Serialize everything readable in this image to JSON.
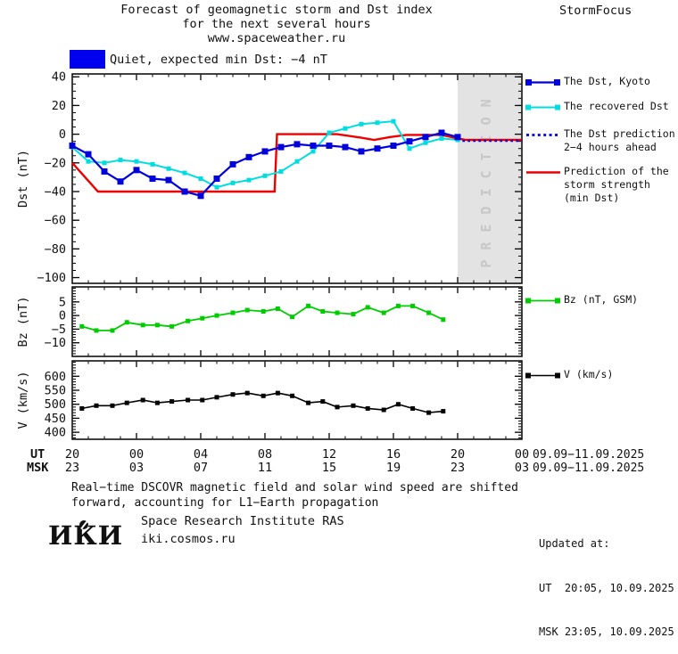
{
  "header": {
    "title_line1": "Forecast of geomagnetic storm and Dst index",
    "title_line2": "for the next several hours",
    "title_line3": "www.spaceweather.ru",
    "brand": "StormFocus"
  },
  "banner": {
    "label": "Quiet, expected min Dst: −4 nT",
    "box_color": "#0000ee"
  },
  "legend": {
    "kyoto": "The Dst, Kyoto",
    "recovered": "The recovered Dst",
    "prediction": "The Dst prediction\n2−4 hours ahead",
    "storm": "Prediction of the\nstorm strength\n(min Dst)",
    "bz": "Bz (nT, GSM)",
    "v": "V (km/s)"
  },
  "colors": {
    "dst_kyoto_blue": "#0000dd",
    "recovered_cyan": "#00dde0",
    "prediction_red": "#ee0000",
    "bz_green": "#00cc00",
    "v_black": "#000000",
    "prediction_bg": "#e3e3e3",
    "prediction_text": "#c7c7c7"
  },
  "x_axis": {
    "ut_label": "UT",
    "msk_label": "MSK",
    "ut_values": [
      "20",
      "00",
      "04",
      "08",
      "12",
      "16",
      "20",
      "00"
    ],
    "msk_values": [
      "23",
      "03",
      "07",
      "11",
      "15",
      "19",
      "23",
      "03"
    ],
    "date_range": "09.09−11.09.2025"
  },
  "chart_data": [
    {
      "type": "line",
      "ylabel": "Dst (nT)",
      "ylim": [
        -104,
        42
      ],
      "yticks": [
        40,
        20,
        0,
        -20,
        -40,
        -60,
        -80,
        -100
      ],
      "yminor": 5,
      "xlim": [
        20,
        48
      ],
      "prediction_region": {
        "from": 44,
        "to": 48,
        "label": "PREDICTION"
      },
      "draw_order": [
        3,
        1,
        0,
        2
      ],
      "series": [
        {
          "name": "The Dst, Kyoto",
          "color": "#0000dd",
          "width": 2.2,
          "marker": 7,
          "x": [
            20,
            21,
            22,
            23,
            24,
            25,
            26,
            27,
            28,
            29,
            30,
            31,
            32,
            33,
            34,
            35,
            36,
            37,
            38,
            39,
            40,
            41,
            42,
            43,
            44
          ],
          "y": [
            -8,
            -14,
            -26,
            -33,
            -25,
            -31,
            -32,
            -40,
            -43,
            -31,
            -21,
            -16,
            -12,
            -9,
            -7,
            -8,
            -8,
            -9,
            -12,
            -10,
            -8,
            -5,
            -2,
            1,
            -2
          ]
        },
        {
          "name": "The recovered Dst",
          "color": "#00dde0",
          "width": 2,
          "marker": 5,
          "x": [
            20,
            21,
            22,
            23,
            24,
            25,
            26,
            27,
            28,
            29,
            30,
            31,
            32,
            33,
            34,
            35,
            36,
            37,
            38,
            39,
            40,
            41,
            42,
            43,
            44
          ],
          "y": [
            -9,
            -19,
            -20,
            -18,
            -19,
            -21,
            -24,
            -27,
            -31,
            -37,
            -34,
            -32,
            -29,
            -26,
            -19,
            -12,
            1,
            4,
            7,
            8,
            9,
            -10,
            -6,
            -3,
            -4
          ]
        },
        {
          "name": "The Dst prediction 2-4 hours ahead",
          "color": "#0000dd",
          "width": 2.6,
          "style": "dotted",
          "x": [
            44.3,
            48
          ],
          "y": [
            -4.6,
            -4.6
          ]
        },
        {
          "name": "Prediction of the storm strength (min Dst)",
          "color": "#ee0000",
          "width": 2.4,
          "x": [
            20,
            21.6,
            32.6,
            32.75,
            36.5,
            38,
            38.8,
            39.8,
            40.8,
            43,
            43.8,
            44.5,
            48
          ],
          "y": [
            -20,
            -40,
            -40,
            0,
            0,
            -2.5,
            -4,
            -2,
            -0.5,
            -0.5,
            -2.5,
            -4,
            -4
          ]
        }
      ]
    },
    {
      "type": "line",
      "ylabel": "Bz (nT)",
      "ylim": [
        -15,
        10.5
      ],
      "yticks": [
        5,
        0,
        -5,
        -10
      ],
      "yminor": 1,
      "xlim": [
        20,
        48
      ],
      "series": [
        {
          "name": "Bz (nT, GSM)",
          "color": "#00cc00",
          "width": 1.8,
          "marker": 5,
          "x": [
            20.6,
            21.5,
            22.5,
            23.4,
            24.4,
            25.3,
            26.2,
            27.2,
            28.1,
            29,
            30,
            30.9,
            31.9,
            32.8,
            33.7,
            34.7,
            35.6,
            36.5,
            37.5,
            38.4,
            39.4,
            40.3,
            41.2,
            42.2,
            43.1
          ],
          "y": [
            -4,
            -5.5,
            -5.5,
            -2.5,
            -3.5,
            -3.5,
            -4,
            -2,
            -1,
            0,
            1,
            2,
            1.5,
            2.5,
            -0.5,
            3.5,
            1.5,
            1,
            0.5,
            3,
            1,
            3.5,
            3.5,
            1,
            -1.5
          ]
        }
      ]
    },
    {
      "type": "line",
      "ylabel": "V (km/s)",
      "ylim": [
        375,
        655
      ],
      "yticks": [
        600,
        550,
        500,
        450,
        400
      ],
      "yminor": 10,
      "xlim": [
        20,
        48
      ],
      "series": [
        {
          "name": "V (km/s)",
          "color": "#000000",
          "width": 1.6,
          "marker": 5,
          "x": [
            20.6,
            21.5,
            22.5,
            23.4,
            24.4,
            25.3,
            26.2,
            27.2,
            28.1,
            29,
            30,
            30.9,
            31.9,
            32.8,
            33.7,
            34.7,
            35.6,
            36.5,
            37.5,
            38.4,
            39.4,
            40.3,
            41.2,
            42.2,
            43.1
          ],
          "y": [
            485,
            495,
            495,
            505,
            515,
            505,
            510,
            515,
            515,
            525,
            535,
            540,
            530,
            540,
            530,
            505,
            510,
            490,
            495,
            485,
            480,
            500,
            485,
            470,
            475
          ]
        }
      ]
    }
  ],
  "footer": {
    "note_line1": "Real−time DSCOVR magnetic field and solar wind speed are shifted",
    "note_line2": "forward, accounting for L1−Earth propagation",
    "logo_text": "ИКИ",
    "institute": "Space Research Institute RAS",
    "site": "iki.cosmos.ru"
  },
  "updated": {
    "title": "Updated at:",
    "ut": "UT  20:05, 10.09.2025",
    "msk": "MSK 23:05, 10.09.2025"
  }
}
